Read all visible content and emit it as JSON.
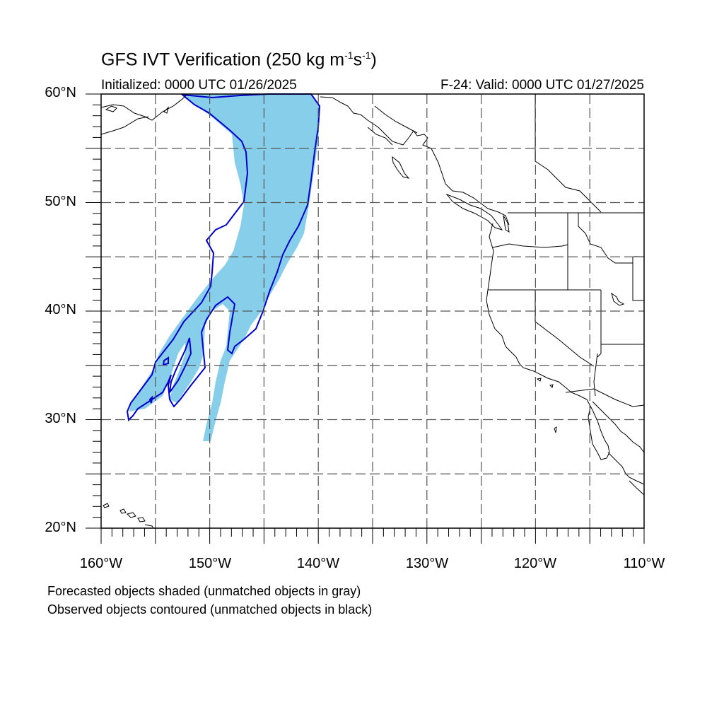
{
  "title": {
    "main": "GFS IVT Verification (250 kg m",
    "exp1": "-1",
    "mid": "s",
    "exp2": "-1",
    "end": ")"
  },
  "initialized": "Initialized: 0000 UTC 01/26/2025",
  "valid": "F-24: Valid: 0000 UTC 01/27/2025",
  "axes": {
    "lat_labels": [
      "60°N",
      "50°N",
      "40°N",
      "30°N",
      "20°N"
    ],
    "lon_labels": [
      "160°W",
      "150°W",
      "140°W",
      "130°W",
      "120°W",
      "110°W"
    ]
  },
  "notes": [
    "Forecasted objects shaded (unmatched objects in gray)",
    "Observed objects contoured (unmatched objects in black)"
  ],
  "map": {
    "extent": {
      "lon_min": -160,
      "lon_max": -110,
      "lat_min": 20,
      "lat_max": 60
    },
    "gridline_spacing_deg": 5,
    "forecast_fill_color": "#87CEEB",
    "observed_contour_color": "#0000CD",
    "coastline_color": "#000000"
  }
}
